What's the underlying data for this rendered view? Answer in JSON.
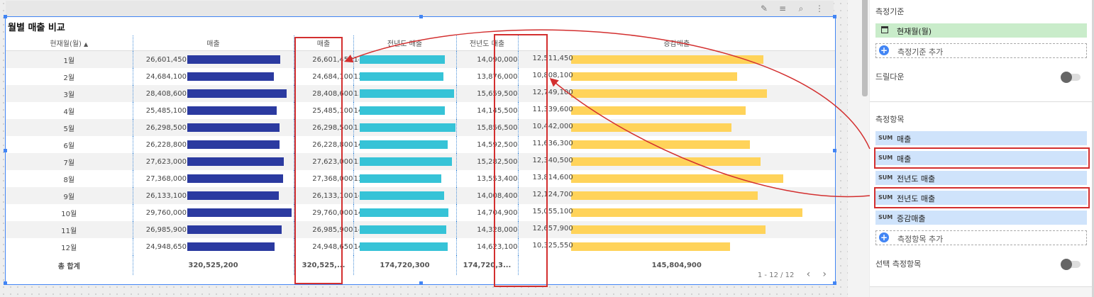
{
  "chart": {
    "title": "월별 매출 비교",
    "columns": {
      "month": "현재월(월)",
      "sales": "매출",
      "sales2": "매출",
      "prev_sales": "전년도 매출",
      "prev_sales2": "전년도 매출",
      "diff": "증감매출"
    },
    "sort_indicator": "▲",
    "rows": [
      {
        "month": "1월",
        "sales": "26,601,450",
        "sales2": "26,601,450",
        "prev": "14,090,000",
        "prev2": "14,090,000",
        "diff": "12,511,450",
        "sales_v": 26601450,
        "prev_v": 14090000,
        "diff_v": 12511450
      },
      {
        "month": "2월",
        "sales": "24,684,100",
        "sales2": "24,684,100",
        "prev": "13,876,000",
        "prev2": "13,876,000",
        "diff": "10,808,100",
        "sales_v": 24684100,
        "prev_v": 13876000,
        "diff_v": 10808100
      },
      {
        "month": "3월",
        "sales": "28,408,600",
        "sales2": "28,408,600",
        "prev": "15,659,500",
        "prev2": "15,659,500",
        "diff": "12,749,100",
        "sales_v": 28408600,
        "prev_v": 15659500,
        "diff_v": 12749100
      },
      {
        "month": "4월",
        "sales": "25,485,100",
        "sales2": "25,485,100",
        "prev": "14,145,500",
        "prev2": "14,145,500",
        "diff": "11,339,600",
        "sales_v": 25485100,
        "prev_v": 14145500,
        "diff_v": 11339600
      },
      {
        "month": "5월",
        "sales": "26,298,500",
        "sales2": "26,298,500",
        "prev": "15,856,500",
        "prev2": "15,856,500",
        "diff": "10,442,000",
        "sales_v": 26298500,
        "prev_v": 15856500,
        "diff_v": 10442000
      },
      {
        "month": "6월",
        "sales": "26,228,800",
        "sales2": "26,228,800",
        "prev": "14,592,500",
        "prev2": "14,592,500",
        "diff": "11,636,300",
        "sales_v": 26228800,
        "prev_v": 14592500,
        "diff_v": 11636300
      },
      {
        "month": "7월",
        "sales": "27,623,000",
        "sales2": "27,623,000",
        "prev": "15,282,500",
        "prev2": "15,282,500",
        "diff": "12,340,500",
        "sales_v": 27623000,
        "prev_v": 15282500,
        "diff_v": 12340500
      },
      {
        "month": "8월",
        "sales": "27,368,000",
        "sales2": "27,368,000",
        "prev": "13,553,400",
        "prev2": "13,553,400",
        "diff": "13,814,600",
        "sales_v": 27368000,
        "prev_v": 13553400,
        "diff_v": 13814600
      },
      {
        "month": "9월",
        "sales": "26,133,100",
        "sales2": "26,133,100",
        "prev": "14,008,400",
        "prev2": "14,008,400",
        "diff": "12,124,700",
        "sales_v": 26133100,
        "prev_v": 14008400,
        "diff_v": 12124700
      },
      {
        "month": "10월",
        "sales": "29,760,000",
        "sales2": "29,760,000",
        "prev": "14,704,900",
        "prev2": "14,704,900",
        "diff": "15,055,100",
        "sales_v": 29760000,
        "prev_v": 14704900,
        "diff_v": 15055100
      },
      {
        "month": "11월",
        "sales": "26,985,900",
        "sales2": "26,985,900",
        "prev": "14,328,000",
        "prev2": "14,328,000",
        "diff": "12,657,900",
        "sales_v": 26985900,
        "prev_v": 14328000,
        "diff_v": 12657900
      },
      {
        "month": "12월",
        "sales": "24,948,650",
        "sales2": "24,948,650",
        "prev": "14,623,100",
        "prev2": "14,623,100",
        "diff": "10,325,550",
        "sales_v": 24948650,
        "prev_v": 14623100,
        "diff_v": 10325550
      }
    ],
    "totals": {
      "label": "총 합계",
      "sales": "320,525,200",
      "sales2": "320,525,...",
      "prev": "174,720,300",
      "prev2": "174,720,3...",
      "diff": "145,804,900"
    },
    "pagination": {
      "range": "1 - 12 / 12",
      "prev": "‹",
      "next": "›"
    },
    "colors": {
      "sales_bar": "#2b3aa0",
      "prev_bar": "#36c3d7",
      "diff_bar": "#ffd35a",
      "highlight": "#d32f2f",
      "selection": "#4285f4"
    }
  },
  "toolbar": {
    "icons": [
      "pencil-icon",
      "filter-icon",
      "zoom-icon",
      "more-vert-icon"
    ],
    "glyphs": [
      "✎",
      "≡",
      "⌕",
      "⋮"
    ]
  },
  "panel": {
    "dimension_title": "측정기준",
    "dimension_chip": "현재월(월)",
    "add_dimension": "측정기준 추가",
    "drilldown": "드릴다운",
    "metrics_title": "측정항목",
    "sum_label": "SUM",
    "metrics": [
      "매출",
      "매출",
      "전년도 매출",
      "전년도 매출",
      "증감매출"
    ],
    "add_metric": "측정항목 추가",
    "optional_metrics": "선택 측정항목"
  }
}
